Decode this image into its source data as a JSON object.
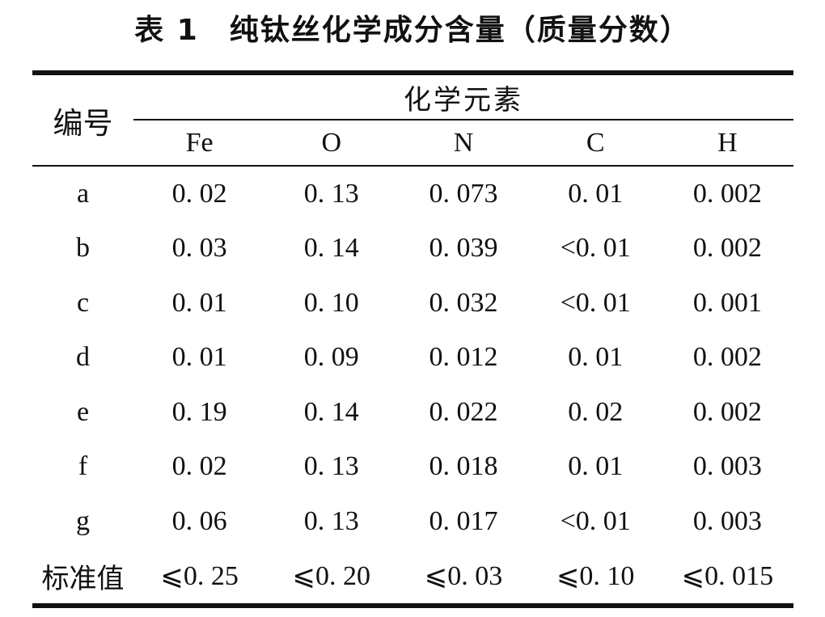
{
  "title": "表 1　纯钛丝化学成分含量（质量分数）",
  "colors": {
    "ink": "#111111",
    "background": "#ffffff"
  },
  "table": {
    "id_header": "编号",
    "group_header": "化学元素",
    "columns": [
      "Fe",
      "O",
      "N",
      "C",
      "H"
    ],
    "rows": [
      {
        "label": "a",
        "values": [
          "0. 02",
          "0. 13",
          "0. 073",
          "0. 01",
          "0. 002"
        ]
      },
      {
        "label": "b",
        "values": [
          "0. 03",
          "0. 14",
          "0. 039",
          "<0. 01",
          "0. 002"
        ]
      },
      {
        "label": "c",
        "values": [
          "0. 01",
          "0. 10",
          "0. 032",
          "<0. 01",
          "0. 001"
        ]
      },
      {
        "label": "d",
        "values": [
          "0. 01",
          "0. 09",
          "0. 012",
          "0. 01",
          "0. 002"
        ]
      },
      {
        "label": "e",
        "values": [
          "0. 19",
          "0. 14",
          "0. 022",
          "0. 02",
          "0. 002"
        ]
      },
      {
        "label": "f",
        "values": [
          "0. 02",
          "0. 13",
          "0. 018",
          "0. 01",
          "0. 003"
        ]
      },
      {
        "label": "g",
        "values": [
          "0. 06",
          "0. 13",
          "0. 017",
          "<0. 01",
          "0. 003"
        ]
      },
      {
        "label": "标准值",
        "values": [
          "⩽0. 25",
          "⩽0. 20",
          "⩽0. 03",
          "⩽0. 10",
          "⩽0. 015"
        ]
      }
    ]
  }
}
